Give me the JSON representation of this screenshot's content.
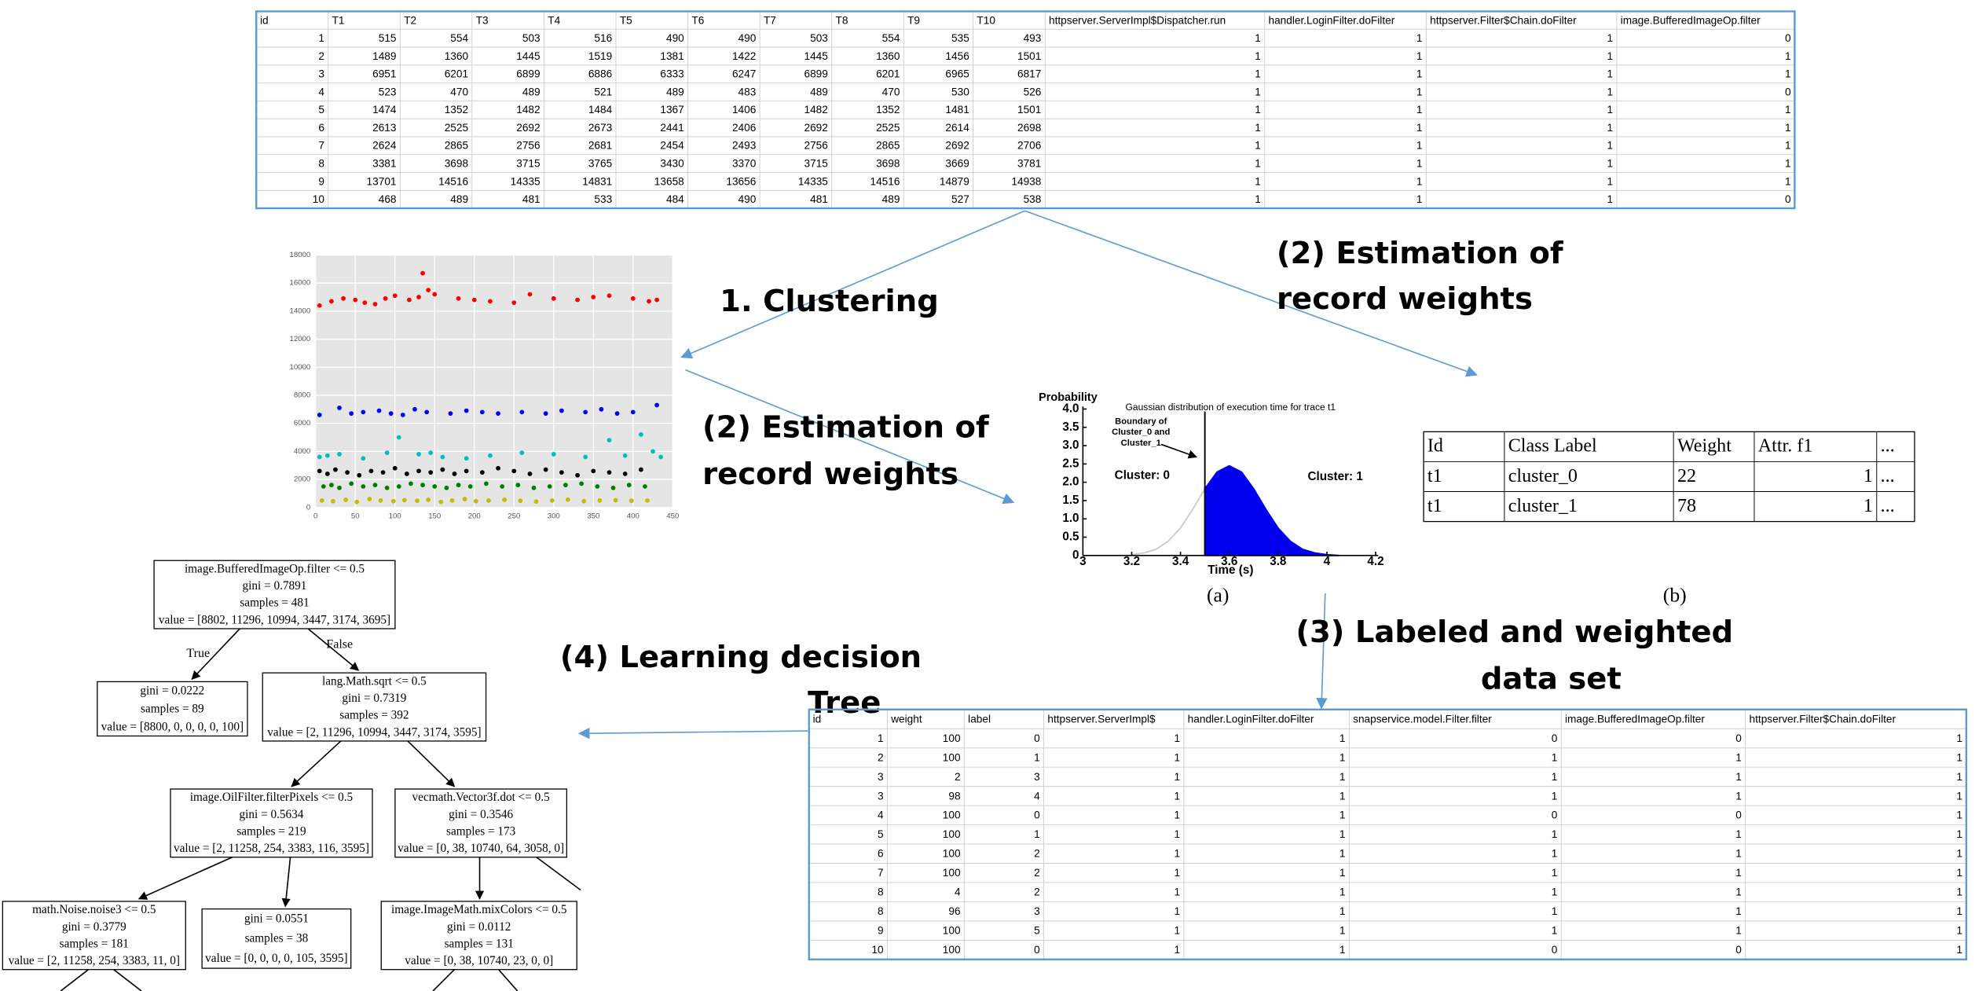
{
  "top_table": {
    "columns": [
      "id",
      "T1",
      "T2",
      "T3",
      "T4",
      "T5",
      "T6",
      "T7",
      "T8",
      "T9",
      "T10",
      "httpserver.ServerImpl$Dispatcher.run",
      "handler.LoginFilter.doFilter",
      "httpserver.Filter$Chain.doFilter",
      "image.BufferedImageOp.filter"
    ],
    "rows": [
      [
        1,
        515,
        554,
        503,
        516,
        490,
        490,
        503,
        554,
        535,
        493,
        1,
        1,
        1,
        0
      ],
      [
        2,
        1489,
        1360,
        1445,
        1519,
        1381,
        1422,
        1445,
        1360,
        1456,
        1501,
        1,
        1,
        1,
        1
      ],
      [
        3,
        6951,
        6201,
        6899,
        6886,
        6333,
        6247,
        6899,
        6201,
        6965,
        6817,
        1,
        1,
        1,
        1
      ],
      [
        4,
        523,
        470,
        489,
        521,
        489,
        483,
        489,
        470,
        530,
        526,
        1,
        1,
        1,
        0
      ],
      [
        5,
        1474,
        1352,
        1482,
        1484,
        1367,
        1406,
        1482,
        1352,
        1481,
        1501,
        1,
        1,
        1,
        1
      ],
      [
        6,
        2613,
        2525,
        2692,
        2673,
        2441,
        2406,
        2692,
        2525,
        2614,
        2698,
        1,
        1,
        1,
        1
      ],
      [
        7,
        2624,
        2865,
        2756,
        2681,
        2454,
        2493,
        2756,
        2865,
        2692,
        2706,
        1,
        1,
        1,
        1
      ],
      [
        8,
        3381,
        3698,
        3715,
        3765,
        3430,
        3370,
        3715,
        3698,
        3669,
        3781,
        1,
        1,
        1,
        1
      ],
      [
        9,
        13701,
        14516,
        14335,
        14831,
        13658,
        13656,
        14335,
        14516,
        14879,
        14938,
        1,
        1,
        1,
        1
      ],
      [
        10,
        468,
        489,
        481,
        533,
        484,
        490,
        481,
        489,
        527,
        538,
        1,
        1,
        1,
        0
      ]
    ]
  },
  "scatter": {
    "type": "scatter",
    "xlim": [
      0,
      450
    ],
    "ylim": [
      0,
      18000
    ],
    "xticks": [
      0,
      50,
      100,
      150,
      200,
      250,
      300,
      350,
      400,
      450
    ],
    "yticks": [
      0,
      2000,
      4000,
      6000,
      8000,
      10000,
      12000,
      14000,
      16000,
      18000
    ],
    "grid": true,
    "series": [
      {
        "color": "#ff0000",
        "x": [
          5,
          20,
          35,
          50,
          62,
          75,
          88,
          100,
          118,
          130,
          135,
          142,
          150,
          180,
          200,
          220,
          250,
          270,
          300,
          330,
          350,
          370,
          400,
          420,
          430
        ],
        "values": [
          14400,
          14700,
          14900,
          14800,
          14600,
          14500,
          14900,
          15100,
          14800,
          15000,
          16700,
          15500,
          15200,
          14900,
          14800,
          14700,
          14600,
          15200,
          14900,
          14800,
          15000,
          15100,
          14900,
          14700,
          14800
        ]
      },
      {
        "color": "#0000ff",
        "x": [
          5,
          30,
          45,
          60,
          80,
          95,
          110,
          125,
          140,
          170,
          190,
          210,
          230,
          260,
          290,
          310,
          340,
          360,
          380,
          400,
          430
        ],
        "values": [
          6600,
          7100,
          6700,
          6800,
          6900,
          6700,
          6600,
          7000,
          6800,
          6700,
          6900,
          6800,
          6700,
          6800,
          6700,
          6900,
          6800,
          7000,
          6700,
          6800,
          7300
        ]
      },
      {
        "color": "#00bfbf",
        "x": [
          5,
          15,
          30,
          60,
          90,
          105,
          130,
          145,
          160,
          190,
          220,
          260,
          300,
          340,
          370,
          390,
          410,
          425,
          435
        ],
        "values": [
          3600,
          3700,
          3800,
          3500,
          3900,
          5000,
          3800,
          3900,
          3600,
          3500,
          3700,
          3900,
          3800,
          3600,
          4800,
          3700,
          5200,
          4000,
          3600
        ]
      },
      {
        "color": "#000000",
        "x": [
          5,
          15,
          25,
          40,
          55,
          70,
          85,
          100,
          115,
          130,
          145,
          160,
          175,
          190,
          210,
          230,
          250,
          270,
          290,
          310,
          330,
          350,
          370,
          390,
          410
        ],
        "values": [
          2600,
          2400,
          2700,
          2500,
          2300,
          2600,
          2500,
          2800,
          2400,
          2600,
          2500,
          2700,
          2400,
          2600,
          2500,
          2800,
          2600,
          2400,
          2700,
          2500,
          2300,
          2600,
          2500,
          2400,
          2700
        ]
      },
      {
        "color": "#008000",
        "x": [
          10,
          20,
          30,
          45,
          60,
          75,
          90,
          105,
          120,
          135,
          150,
          165,
          180,
          195,
          215,
          235,
          255,
          275,
          295,
          315,
          335,
          355,
          375,
          395,
          415
        ],
        "values": [
          1500,
          1600,
          1400,
          1700,
          1500,
          1600,
          1400,
          1500,
          1700,
          1600,
          1500,
          1400,
          1600,
          1500,
          1700,
          1500,
          1600,
          1400,
          1500,
          1600,
          1700,
          1500,
          1400,
          1600,
          1500
        ]
      },
      {
        "color": "#bfbf00",
        "x": [
          8,
          22,
          38,
          52,
          68,
          82,
          98,
          112,
          128,
          142,
          158,
          172,
          188,
          202,
          218,
          238,
          258,
          278,
          298,
          318,
          338,
          358,
          378,
          398,
          418
        ],
        "values": [
          500,
          450,
          550,
          400,
          600,
          500,
          450,
          520,
          480,
          550,
          400,
          500,
          600,
          450,
          500,
          550,
          480,
          420,
          500,
          560,
          450,
          500,
          520,
          480,
          500
        ]
      }
    ]
  },
  "gaussian": {
    "type": "area",
    "title": "Gaussian distribution of execution time for trace t1",
    "ylabel": "Probability",
    "xlabel": "Time (s)",
    "caption": "(a)",
    "xlim": [
      3,
      4.2
    ],
    "ylim": [
      0,
      4
    ],
    "xticks": [
      3,
      3.2,
      3.4,
      3.6,
      3.8,
      4,
      4.2
    ],
    "yticks": [
      {
        "value": 4,
        "label": "4.0"
      },
      3.5,
      {
        "value": 3,
        "label": "3.0"
      },
      2.5,
      {
        "value": 2,
        "label": "2.0"
      },
      1.5,
      {
        "value": 1,
        "label": "1.0"
      },
      0.5,
      0
    ],
    "boundary": 3.5,
    "annotation": [
      "Boundary of",
      "Cluster_0 and",
      "Cluster_1"
    ],
    "cluster_labels": [
      {
        "text": "Cluster: 0",
        "color": "#000000"
      },
      {
        "text": "Cluster: 1",
        "color": "#1f4fff"
      }
    ],
    "series": [
      {
        "color": "#cccccc",
        "fill": false,
        "x": [
          3.2,
          3.25,
          3.3,
          3.35,
          3.4,
          3.45,
          3.5
        ],
        "values": [
          0.02,
          0.07,
          0.17,
          0.39,
          0.75,
          1.26,
          1.82
        ]
      },
      {
        "color": "#0000ee",
        "fill": true,
        "x": [
          3.5,
          3.55,
          3.6,
          3.65,
          3.7,
          3.75,
          3.8,
          3.85,
          3.9,
          3.95,
          4,
          4.05
        ],
        "values": [
          1.82,
          2.28,
          2.45,
          2.28,
          1.82,
          1.26,
          0.75,
          0.39,
          0.17,
          0.07,
          0.02,
          0
        ]
      }
    ]
  },
  "weights_table": {
    "columns": [
      "Id",
      "Class Label",
      "Weight",
      "Attr. f1",
      "..."
    ],
    "rows": [
      [
        "t1",
        "cluster_0",
        22,
        1,
        "..."
      ],
      [
        "t1",
        "cluster_1",
        78,
        1,
        "..."
      ]
    ],
    "caption": "(b)"
  },
  "labeled_table": {
    "columns": [
      "id",
      "weight",
      "label",
      "httpserver.ServerImpl$",
      "handler.LoginFilter.doFilter",
      "snapservice.model.Filter.filter",
      "image.BufferedImageOp.filter",
      "httpserver.Filter$Chain.doFilter"
    ],
    "rows": [
      [
        1,
        100,
        0,
        1,
        1,
        0,
        0,
        1
      ],
      [
        2,
        100,
        1,
        1,
        1,
        1,
        1,
        1
      ],
      [
        3,
        2,
        3,
        1,
        1,
        1,
        1,
        1
      ],
      [
        3,
        98,
        4,
        1,
        1,
        1,
        1,
        1
      ],
      [
        4,
        100,
        0,
        1,
        1,
        0,
        0,
        1
      ],
      [
        5,
        100,
        1,
        1,
        1,
        1,
        1,
        1
      ],
      [
        6,
        100,
        2,
        1,
        1,
        1,
        1,
        1
      ],
      [
        7,
        100,
        2,
        1,
        1,
        1,
        1,
        1
      ],
      [
        8,
        4,
        2,
        1,
        1,
        1,
        1,
        1
      ],
      [
        8,
        96,
        3,
        1,
        1,
        1,
        1,
        1
      ],
      [
        9,
        100,
        5,
        1,
        1,
        1,
        1,
        1
      ],
      [
        10,
        100,
        0,
        1,
        1,
        0,
        0,
        1
      ]
    ]
  },
  "tree": {
    "nodes": [
      [
        "image.BufferedImageOp.filter <= 0.5",
        "gini = 0.7891",
        "samples = 481",
        "value = [8802, 11296, 10994, 3447, 3174, 3695]"
      ],
      [
        "gini = 0.0222",
        "samples = 89",
        "value = [8800, 0, 0, 0, 0, 100]"
      ],
      [
        "lang.Math.sqrt <= 0.5",
        "gini = 0.7319",
        "samples = 392",
        "value = [2, 11296, 10994, 3447, 3174, 3595]"
      ],
      [
        "image.OilFilter.filterPixels <= 0.5",
        "gini = 0.5634",
        "samples = 219",
        "value = [2, 11258, 254, 3383, 116, 3595]"
      ],
      [
        "vecmath.Vector3f.dot <= 0.5",
        "gini = 0.3546",
        "samples = 173",
        "value = [0, 38, 10740, 64, 3058, 0]"
      ],
      [
        "math.Noise.noise3 <= 0.5",
        "gini = 0.3779",
        "samples = 181",
        "value = [2, 11258, 254, 3383, 11, 0]"
      ],
      [
        "gini = 0.0551",
        "samples = 38",
        "value = [0, 0, 0, 0, 105, 3595]"
      ],
      [
        "image.ImageMath.mixColors <= 0.5",
        "gini = 0.0112",
        "samples = 131",
        "value = [0, 38, 10740, 23, 0, 0]"
      ]
    ],
    "edge_labels": [
      "True",
      "False"
    ]
  },
  "steps": {
    "clustering": "1. Clustering",
    "weights_top": [
      "(2) Estimation of",
      "record weights"
    ],
    "weights_mid": [
      "(2) Estimation of",
      "record weights"
    ],
    "labeled": [
      "(3) Labeled and weighted",
      "data set"
    ],
    "learning": [
      "(4) Learning decision",
      "Tree"
    ]
  }
}
